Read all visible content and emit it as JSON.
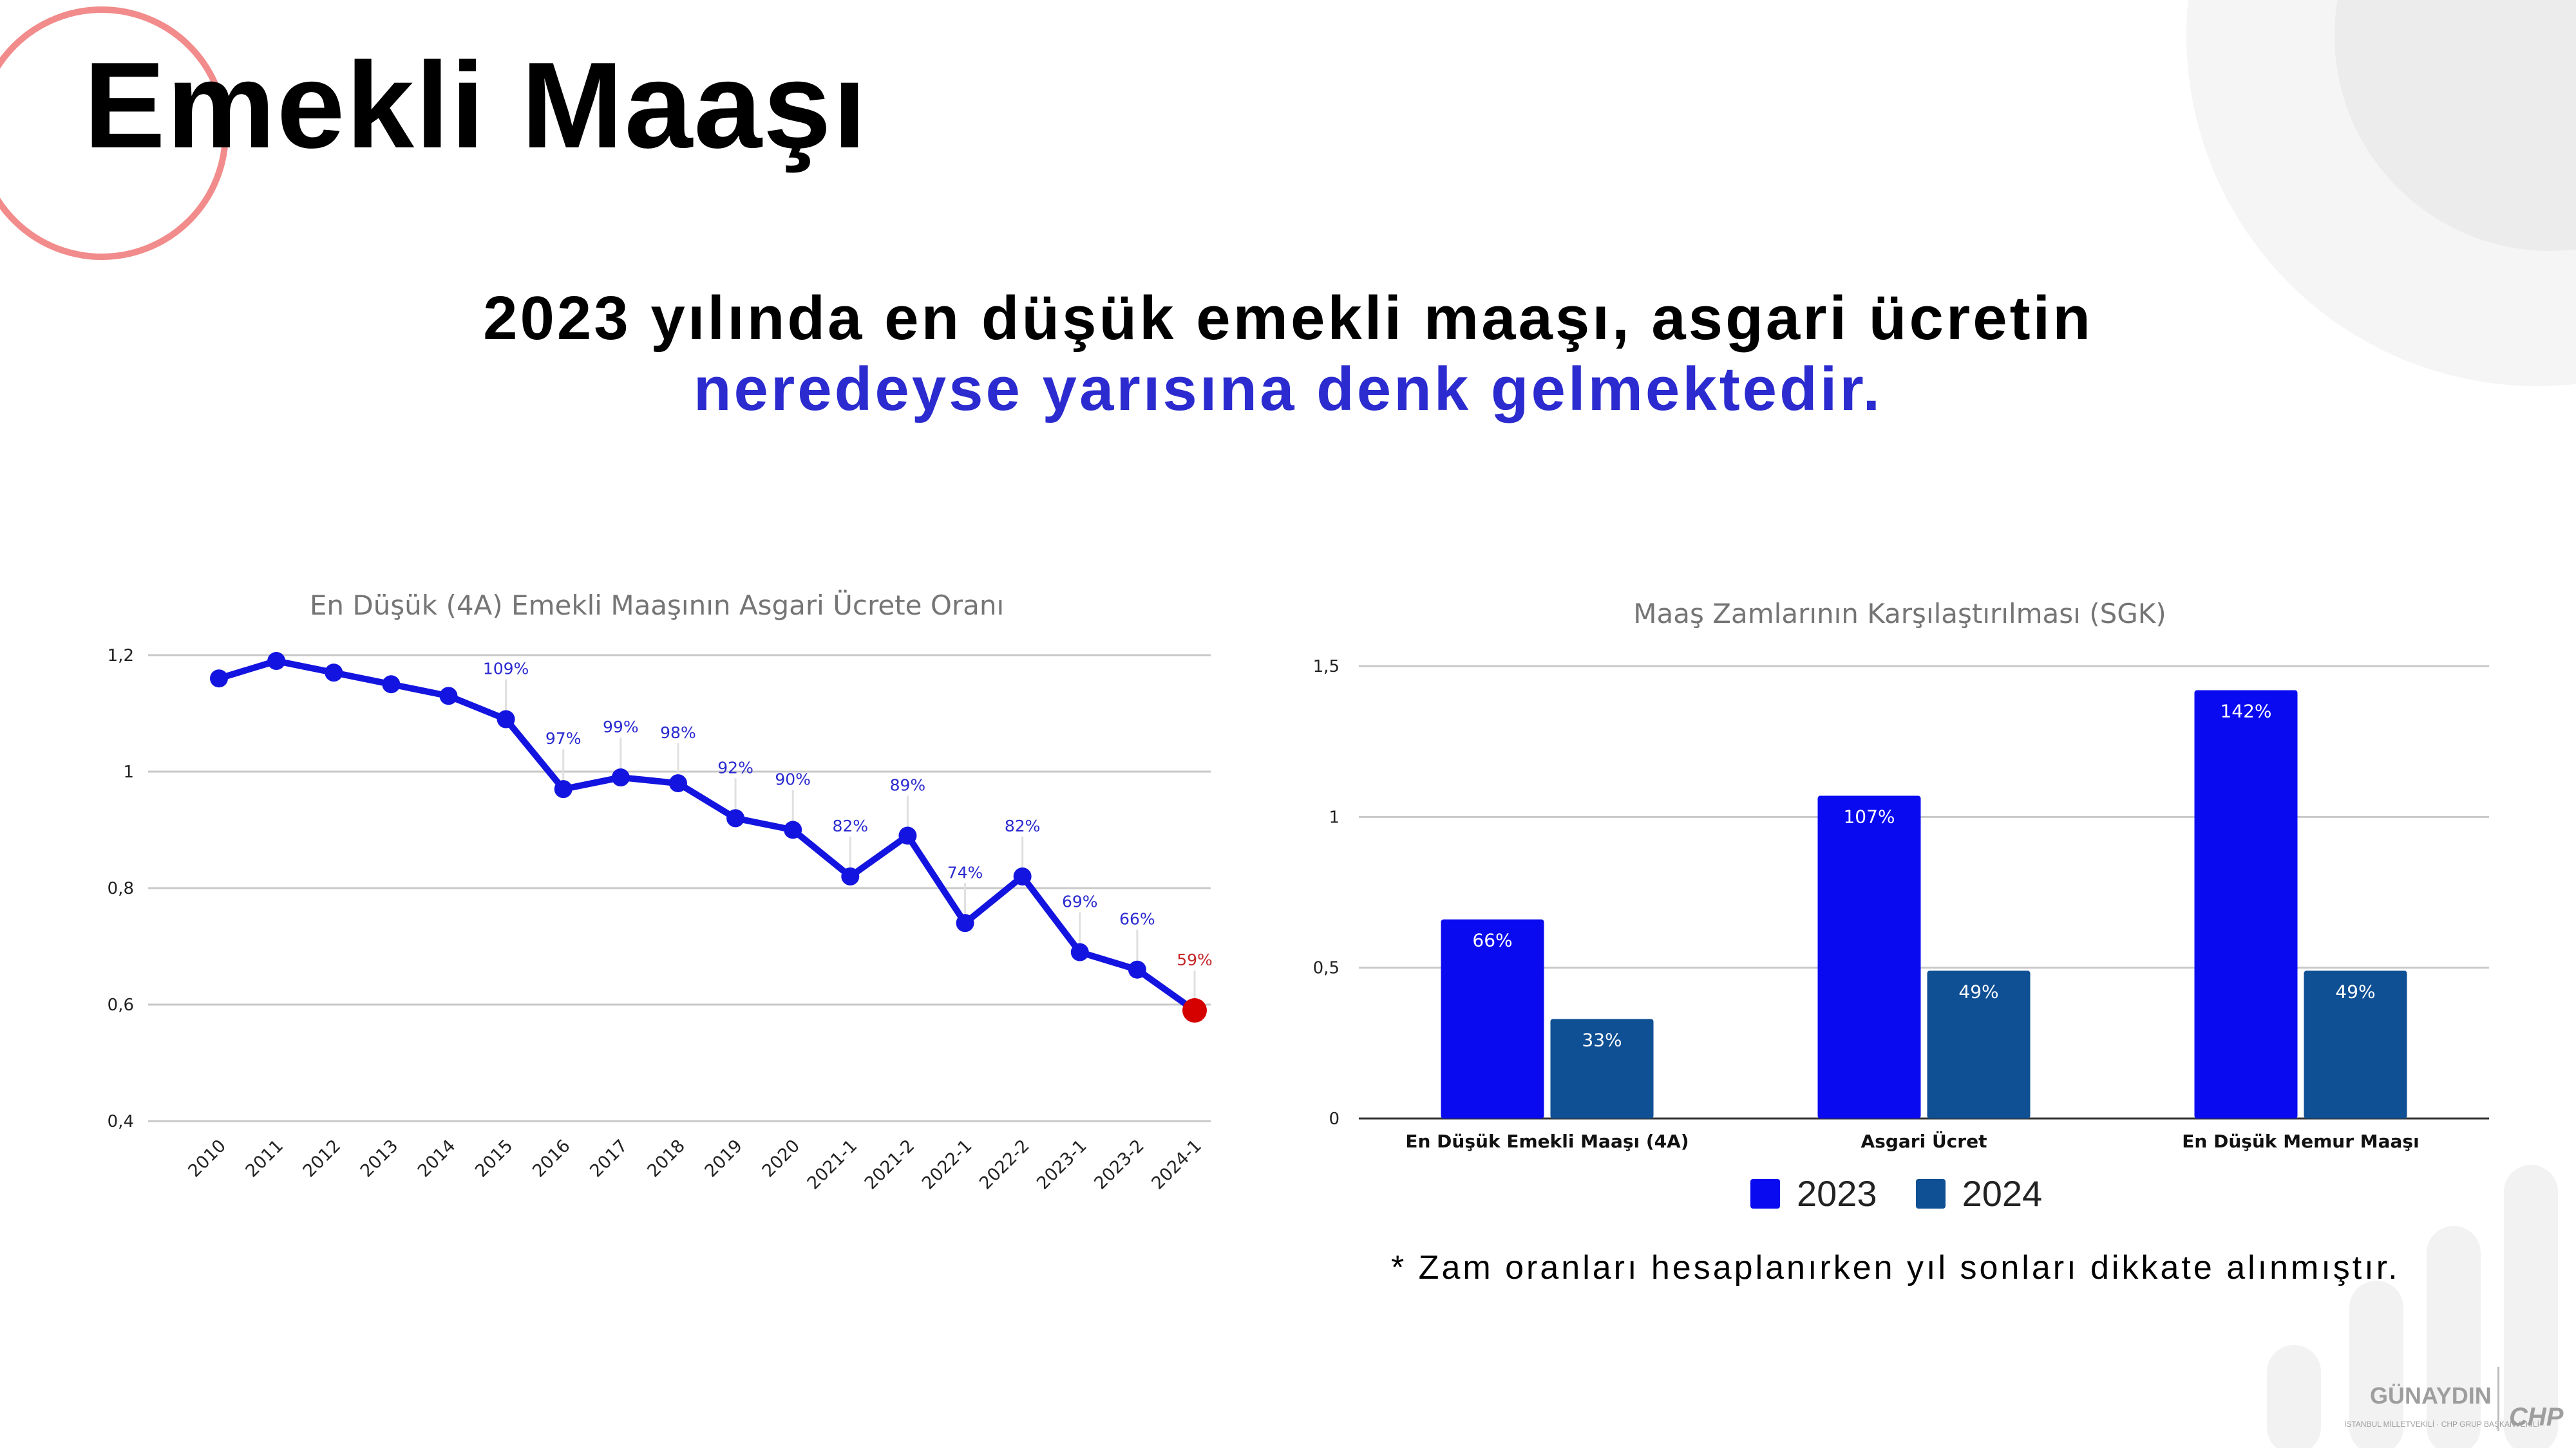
{
  "slide": {
    "title": "Emekli Maaşı",
    "headline_line1": "2023 yılında en düşük emekli maaşı, asgari ücretin",
    "headline_line2": "neredeyse yarısına denk gelmektedir.",
    "note": "* Zam oranları hesaplanırken yıl sonları dikkate alınmıştır.",
    "logo": {
      "name": "GÜNAYDIN",
      "subtitle": "İSTANBUL MİLLETVEKİLİ · CHP GRUP BAŞKANVEKİLİ",
      "party": "CHP"
    }
  },
  "colors": {
    "line": "#1414e0",
    "highlight_point": "#d50000",
    "bar_2023": "#0a0af0",
    "bar_2024": "#0f4f94",
    "headline_accent": "#2b2bcf",
    "decor_red": "#f28b8b",
    "decor_gray": "#f1f1f1"
  },
  "chart_data": [
    {
      "type": "line",
      "title": "En Düşük (4A) Emekli Maaşının Asgari Ücrete Oranı",
      "xlabel": "",
      "ylabel": "",
      "ylim": [
        0.4,
        1.2
      ],
      "yticks": [
        "0,4",
        "0,6",
        "0,8",
        "1",
        "1,2"
      ],
      "grid": true,
      "x": [
        "2010",
        "2011",
        "2012",
        "2013",
        "2014",
        "2015",
        "2016",
        "2017",
        "2018",
        "2019",
        "2020",
        "2021-1",
        "2021-2",
        "2022-1",
        "2022-2",
        "2023-1",
        "2023-2",
        "2024-1"
      ],
      "y": [
        1.16,
        1.19,
        1.17,
        1.15,
        1.13,
        1.09,
        0.97,
        0.99,
        0.98,
        0.92,
        0.9,
        0.82,
        0.89,
        0.74,
        0.82,
        0.69,
        0.66,
        0.59
      ],
      "data_labels": [
        "",
        "",
        "",
        "",
        "",
        "109%",
        "97%",
        "99%",
        "98%",
        "92%",
        "90%",
        "82%",
        "89%",
        "74%",
        "82%",
        "69%",
        "66%",
        "59%"
      ],
      "highlight_last_point": true
    },
    {
      "type": "bar",
      "title": "Maaş Zamlarının Karşılaştırılması (SGK)",
      "xlabel": "",
      "ylabel": "",
      "ylim": [
        0,
        1.5
      ],
      "yticks": [
        "0",
        "0,5",
        "1",
        "1,5"
      ],
      "grid": true,
      "legend": "bottom",
      "categories": [
        "En Düşük Emekli Maaşı (4A)",
        "Asgari Ücret",
        "En Düşük Memur Maaşı"
      ],
      "series": [
        {
          "name": "2023",
          "values": [
            0.66,
            1.07,
            1.42
          ],
          "labels": [
            "66%",
            "107%",
            "142%"
          ]
        },
        {
          "name": "2024",
          "values": [
            0.33,
            0.49,
            0.49
          ],
          "labels": [
            "33%",
            "49%",
            "49%"
          ]
        }
      ]
    }
  ]
}
